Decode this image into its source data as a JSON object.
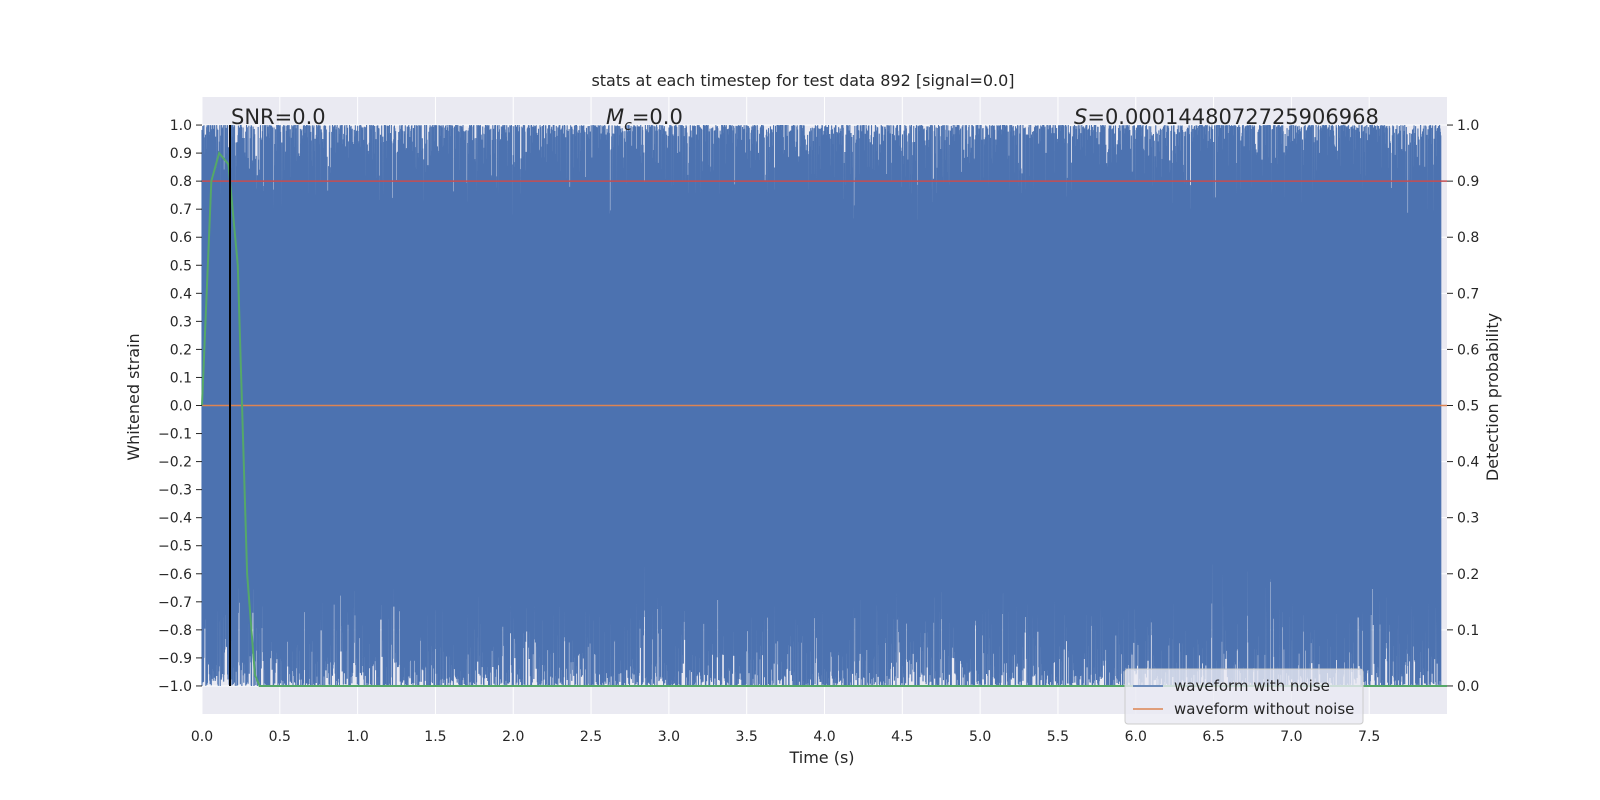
{
  "chart_data": {
    "type": "line",
    "title": "stats at each timestep for test data 892 [signal=0.0]",
    "xlabel": "Time (s)",
    "ylabel": "Whitened strain",
    "ylabel_right": "Detection probability",
    "xlim": [
      0.0,
      8.0
    ],
    "ylim": [
      -1.1,
      1.1
    ],
    "ylim_right": [
      -0.05,
      1.05
    ],
    "x_ticks": [
      "0.0",
      "0.5",
      "1.0",
      "1.5",
      "2.0",
      "2.5",
      "3.0",
      "3.5",
      "4.0",
      "4.5",
      "5.0",
      "5.5",
      "6.0",
      "6.5",
      "7.0",
      "7.5"
    ],
    "y_ticks": [
      "1.0",
      "0.9",
      "0.8",
      "0.7",
      "0.6",
      "0.5",
      "0.4",
      "0.3",
      "0.2",
      "0.1",
      "0.0",
      "−0.1",
      "−0.2",
      "−0.3",
      "−0.4",
      "−0.5",
      "−0.6",
      "−0.7",
      "−0.8",
      "−0.9",
      "−1.0"
    ],
    "y_ticks_right": [
      "1.0",
      "0.9",
      "0.8",
      "0.7",
      "0.6",
      "0.5",
      "0.4",
      "0.3",
      "0.2",
      "0.1",
      "0.0"
    ],
    "grid": true,
    "background": "#eaeaf2",
    "annotations": {
      "snr": "SNR=0.0",
      "mc_symbol": "M",
      "mc_sub": "c",
      "mc_value": "=0.0",
      "s_symbol": "S",
      "s_value": "=0.0001448072725906968"
    },
    "legend": {
      "placement": "lower-right",
      "entries": [
        "waveform with noise",
        "waveform without noise"
      ]
    },
    "series": [
      {
        "name": "waveform with noise",
        "axis": "left",
        "color": "#4c72b0",
        "description_values": "dense noise filling range",
        "range": [
          -1.0,
          1.0
        ]
      },
      {
        "name": "waveform without noise",
        "axis": "left",
        "color": "#dd8452",
        "x": [
          0.0,
          8.0
        ],
        "y": [
          0.0,
          0.0
        ]
      },
      {
        "axis": "right",
        "color": "#55a868",
        "x": [
          0.0,
          0.06,
          0.11,
          0.17,
          0.23,
          0.29,
          0.34,
          0.37,
          8.0
        ],
        "y": [
          0.5,
          0.9,
          0.95,
          0.93,
          0.75,
          0.2,
          0.02,
          0.0,
          0.0
        ]
      },
      {
        "axis": "right",
        "color": "#c44e52",
        "x": [
          0.0,
          8.0
        ],
        "y": [
          0.9,
          0.9
        ]
      }
    ],
    "vline": {
      "x": 0.18,
      "color": "#000000"
    }
  }
}
